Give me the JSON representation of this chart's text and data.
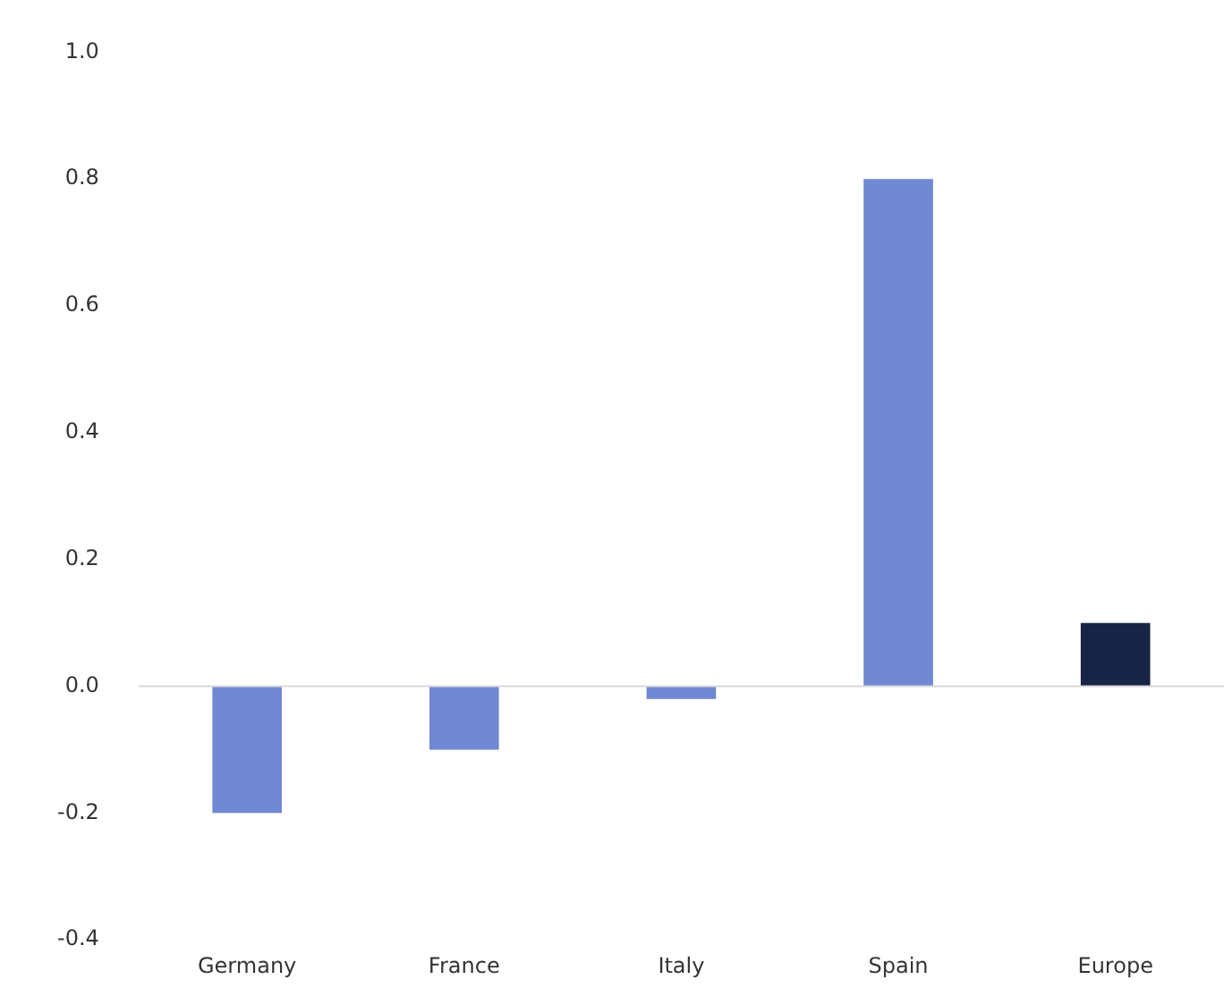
{
  "chart_data": {
    "type": "bar",
    "categories": [
      "Germany",
      "France",
      "Italy",
      "Spain",
      "Europe"
    ],
    "values": [
      -0.2,
      -0.1,
      -0.02,
      0.8,
      0.1
    ],
    "colors": [
      "#7089d2",
      "#7089d2",
      "#7089d2",
      "#7089d2",
      "#172446"
    ],
    "ylim": [
      -0.4,
      1.0
    ],
    "yticks": [
      {
        "value": -0.4,
        "label": "-0.4"
      },
      {
        "value": -0.2,
        "label": "-0.2"
      },
      {
        "value": 0,
        "label": "0.0"
      },
      {
        "value": 0.2,
        "label": "0.2"
      },
      {
        "value": 0.4,
        "label": "0.4"
      },
      {
        "value": 0.6,
        "label": "0.6"
      },
      {
        "value": 0.8,
        "label": "0.8"
      },
      {
        "value": 1.0,
        "label": "1.0"
      }
    ],
    "grid": false,
    "ref_lines": [
      {
        "axis": "y",
        "value": 0,
        "color": "#d9d9d9"
      }
    ]
  }
}
